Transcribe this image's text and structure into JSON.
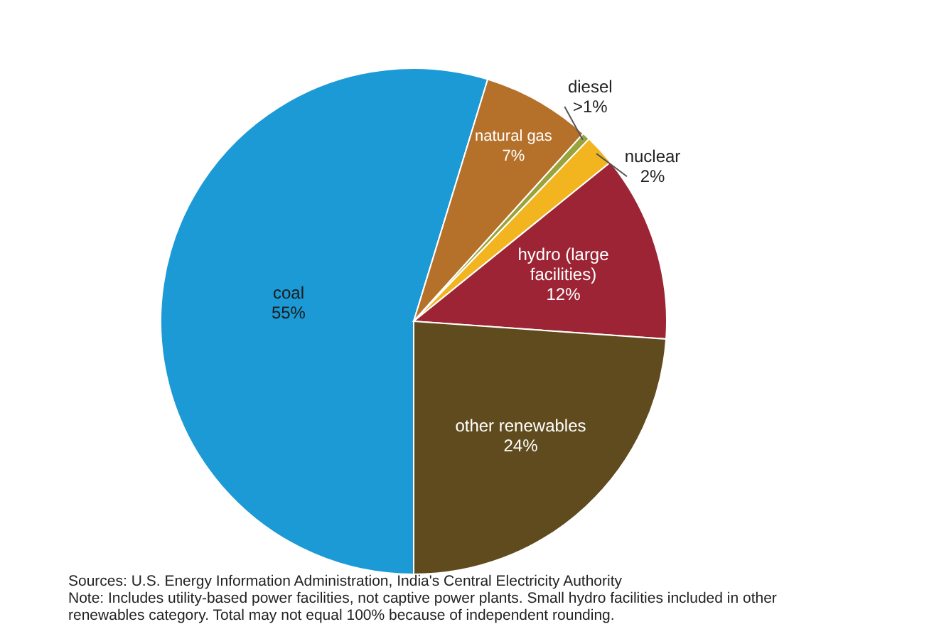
{
  "chart_data": {
    "type": "pie",
    "categories": [
      "coal",
      "natural gas",
      "diesel",
      "nuclear",
      "hydro (large facilities)",
      "other renewables"
    ],
    "values": [
      55,
      7,
      0.5,
      2,
      12,
      24
    ],
    "value_labels": [
      "55%",
      "7%",
      ">1%",
      "2%",
      "12%",
      "24%"
    ],
    "colors": [
      "#1b9ad6",
      "#b5712a",
      "#9aa33c",
      "#f2b51f",
      "#9c2434",
      "#5f4b1d"
    ],
    "annotations": [
      "Sources: U.S. Energy Information Administration, India's Central Electricity Authority",
      "Note: Includes utility-based power facilities, not captive power plants. Small hydro facilities included in other renewables category. Total may not equal 100% because of independent rounding."
    ]
  }
}
